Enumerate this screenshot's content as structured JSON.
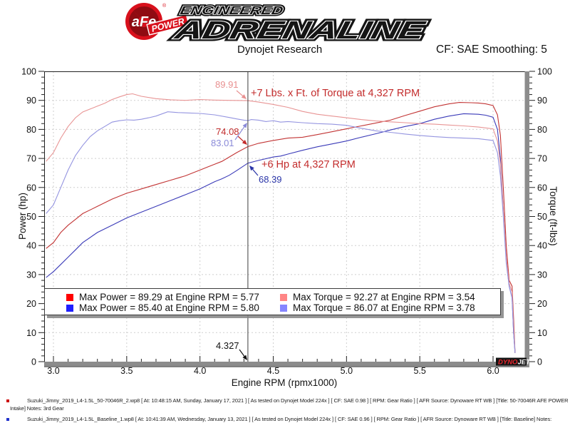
{
  "brand": {
    "afe": "aFe",
    "power": "POWER",
    "registered": "®",
    "engineered": "ENGINEERED",
    "adrenaline": "ADRENALINE"
  },
  "header": {
    "title": "Dynojet Research",
    "smoothing": "CF: SAE Smoothing: 5"
  },
  "chart_data": {
    "type": "line",
    "xlabel": "Engine RPM (rpmx1000)",
    "ylabel_left": "Power (hp)",
    "ylabel_right": "Torque (ft-lbs)",
    "xlim": [
      2.94,
      6.22
    ],
    "ylim": [
      0,
      100
    ],
    "x_major_tick": 0.5,
    "x_minor_tick": 0.1,
    "y_major_tick": 10,
    "y_minor_tick": 2,
    "grid": "dashed gray at major ticks",
    "legend_position": "bottom-inside",
    "cursor_x": 4.327,
    "cursor_readouts": {
      "rpm": 4.327,
      "torque_afe": 89.91,
      "torque_base": 83.01,
      "power_afe": 74.08,
      "power_base": 68.39
    },
    "annotations": {
      "torque_afe_value": "89.91",
      "torque_gain_label": "+7 Lbs. x Ft. of Torque at 4,327 RPM",
      "power_afe_value": "74.08",
      "torque_base_value": "83.01",
      "power_gain_label": "+6 Hp at 4,327 RPM",
      "power_base_value": "68.39",
      "cursor_label": "4.327"
    },
    "series": [
      {
        "name": "power_afe_intake",
        "unit": "hp",
        "color": "#c23434",
        "max": {
          "value": 89.29,
          "rpm": 5.77
        },
        "points": [
          [
            2.95,
            39
          ],
          [
            3.0,
            41
          ],
          [
            3.05,
            44.5
          ],
          [
            3.1,
            47
          ],
          [
            3.15,
            49
          ],
          [
            3.2,
            51
          ],
          [
            3.3,
            53.5
          ],
          [
            3.4,
            56
          ],
          [
            3.5,
            58
          ],
          [
            3.6,
            59.5
          ],
          [
            3.7,
            61
          ],
          [
            3.8,
            62.5
          ],
          [
            3.9,
            64
          ],
          [
            4.0,
            66
          ],
          [
            4.05,
            67
          ],
          [
            4.1,
            68
          ],
          [
            4.15,
            69
          ],
          [
            4.2,
            70.5
          ],
          [
            4.25,
            72
          ],
          [
            4.327,
            74.08
          ],
          [
            4.4,
            75.2
          ],
          [
            4.5,
            76.2
          ],
          [
            4.6,
            77
          ],
          [
            4.7,
            77.3
          ],
          [
            4.8,
            78.2
          ],
          [
            4.9,
            79.2
          ],
          [
            5.0,
            80.2
          ],
          [
            5.1,
            81.2
          ],
          [
            5.2,
            82.2
          ],
          [
            5.3,
            83.2
          ],
          [
            5.4,
            84.8
          ],
          [
            5.5,
            86.3
          ],
          [
            5.6,
            87.8
          ],
          [
            5.7,
            88.8
          ],
          [
            5.77,
            89.29
          ],
          [
            5.85,
            89.2
          ],
          [
            5.9,
            89.1
          ],
          [
            5.95,
            88.8
          ],
          [
            6.0,
            88.2
          ],
          [
            6.03,
            85
          ],
          [
            6.05,
            78
          ],
          [
            6.07,
            60
          ],
          [
            6.09,
            40
          ],
          [
            6.11,
            28
          ],
          [
            6.13,
            26
          ],
          [
            6.14,
            15
          ],
          [
            6.15,
            3
          ]
        ]
      },
      {
        "name": "power_baseline",
        "unit": "hp",
        "color": "#3a3ab8",
        "max": {
          "value": 85.4,
          "rpm": 5.8
        },
        "points": [
          [
            2.95,
            29
          ],
          [
            3.0,
            31
          ],
          [
            3.05,
            33.5
          ],
          [
            3.1,
            36
          ],
          [
            3.15,
            38.5
          ],
          [
            3.2,
            41
          ],
          [
            3.3,
            44.5
          ],
          [
            3.4,
            47
          ],
          [
            3.5,
            49.5
          ],
          [
            3.6,
            51.5
          ],
          [
            3.7,
            53.5
          ],
          [
            3.8,
            55.5
          ],
          [
            3.9,
            57.5
          ],
          [
            4.0,
            59.5
          ],
          [
            4.1,
            62
          ],
          [
            4.15,
            63
          ],
          [
            4.2,
            64.2
          ],
          [
            4.25,
            65.8
          ],
          [
            4.327,
            68.39
          ],
          [
            4.4,
            69.3
          ],
          [
            4.5,
            70.5
          ],
          [
            4.55,
            70.8
          ],
          [
            4.6,
            71.5
          ],
          [
            4.7,
            72.8
          ],
          [
            4.8,
            74
          ],
          [
            4.9,
            75
          ],
          [
            5.0,
            76
          ],
          [
            5.1,
            77.3
          ],
          [
            5.2,
            78.5
          ],
          [
            5.3,
            79.8
          ],
          [
            5.4,
            81
          ],
          [
            5.5,
            82
          ],
          [
            5.6,
            83.5
          ],
          [
            5.7,
            84.6
          ],
          [
            5.8,
            85.4
          ],
          [
            5.9,
            85.2
          ],
          [
            5.95,
            84.9
          ],
          [
            6.0,
            84.2
          ],
          [
            6.03,
            80
          ],
          [
            6.05,
            70
          ],
          [
            6.07,
            52
          ],
          [
            6.09,
            35
          ],
          [
            6.11,
            26
          ],
          [
            6.13,
            22
          ],
          [
            6.14,
            10
          ],
          [
            6.15,
            3
          ]
        ]
      },
      {
        "name": "torque_afe_intake",
        "unit": "ft-lbs",
        "color": "#e89494",
        "max": {
          "value": 92.27,
          "rpm": 3.54
        },
        "points": [
          [
            2.95,
            69
          ],
          [
            3.0,
            72
          ],
          [
            3.05,
            77
          ],
          [
            3.1,
            81
          ],
          [
            3.15,
            84
          ],
          [
            3.2,
            86
          ],
          [
            3.25,
            87
          ],
          [
            3.3,
            88
          ],
          [
            3.35,
            89
          ],
          [
            3.4,
            90.3
          ],
          [
            3.45,
            91.2
          ],
          [
            3.5,
            92
          ],
          [
            3.54,
            92.27
          ],
          [
            3.6,
            91.4
          ],
          [
            3.7,
            90.6
          ],
          [
            3.8,
            90.2
          ],
          [
            3.9,
            90
          ],
          [
            4.0,
            90.3
          ],
          [
            4.1,
            90.1
          ],
          [
            4.2,
            90
          ],
          [
            4.327,
            89.91
          ],
          [
            4.4,
            89.4
          ],
          [
            4.5,
            88.6
          ],
          [
            4.6,
            87.6
          ],
          [
            4.7,
            86.2
          ],
          [
            4.8,
            85.2
          ],
          [
            4.9,
            84.6
          ],
          [
            5.0,
            84
          ],
          [
            5.1,
            83.4
          ],
          [
            5.2,
            82.9
          ],
          [
            5.3,
            82.6
          ],
          [
            5.4,
            82.3
          ],
          [
            5.5,
            82
          ],
          [
            5.6,
            81.8
          ],
          [
            5.7,
            81.5
          ],
          [
            5.8,
            81.2
          ],
          [
            5.9,
            80.8
          ],
          [
            6.0,
            80.2
          ],
          [
            6.03,
            76
          ],
          [
            6.05,
            68
          ],
          [
            6.07,
            52
          ],
          [
            6.09,
            36
          ],
          [
            6.11,
            27
          ],
          [
            6.13,
            24
          ],
          [
            6.14,
            12
          ],
          [
            6.15,
            3
          ]
        ]
      },
      {
        "name": "torque_baseline",
        "unit": "ft-lbs",
        "color": "#9494e0",
        "max": {
          "value": 86.07,
          "rpm": 3.78
        },
        "points": [
          [
            2.95,
            51
          ],
          [
            3.0,
            54
          ],
          [
            3.05,
            60
          ],
          [
            3.1,
            66
          ],
          [
            3.15,
            71
          ],
          [
            3.2,
            74.5
          ],
          [
            3.25,
            77.5
          ],
          [
            3.3,
            79.5
          ],
          [
            3.35,
            81
          ],
          [
            3.4,
            82.5
          ],
          [
            3.45,
            83
          ],
          [
            3.5,
            83.3
          ],
          [
            3.55,
            83.2
          ],
          [
            3.6,
            83.5
          ],
          [
            3.65,
            84
          ],
          [
            3.7,
            84.6
          ],
          [
            3.78,
            86.07
          ],
          [
            3.85,
            85.8
          ],
          [
            3.9,
            85.7
          ],
          [
            4.0,
            85.5
          ],
          [
            4.1,
            85
          ],
          [
            4.2,
            84.1
          ],
          [
            4.25,
            83.6
          ],
          [
            4.3,
            83.2
          ],
          [
            4.327,
            83.01
          ],
          [
            4.35,
            83.4
          ],
          [
            4.4,
            83.2
          ],
          [
            4.45,
            82.7
          ],
          [
            4.5,
            83
          ],
          [
            4.55,
            82.5
          ],
          [
            4.6,
            82.7
          ],
          [
            4.7,
            82.3
          ],
          [
            4.8,
            82
          ],
          [
            4.9,
            81.8
          ],
          [
            5.0,
            81.4
          ],
          [
            5.1,
            80.4
          ],
          [
            5.2,
            79.5
          ],
          [
            5.3,
            79
          ],
          [
            5.4,
            78.4
          ],
          [
            5.5,
            77.9
          ],
          [
            5.6,
            77.5
          ],
          [
            5.7,
            77.2
          ],
          [
            5.8,
            77
          ],
          [
            5.9,
            76.8
          ],
          [
            6.0,
            76.2
          ],
          [
            6.03,
            72
          ],
          [
            6.05,
            64
          ],
          [
            6.07,
            50
          ],
          [
            6.09,
            34
          ],
          [
            6.11,
            26
          ],
          [
            6.13,
            22
          ],
          [
            6.14,
            10
          ],
          [
            6.15,
            3
          ]
        ]
      }
    ]
  },
  "legend": {
    "columns": [
      [
        {
          "color": "#ff0000",
          "label": "Max Power = 89.29 at Engine RPM = 5.77"
        },
        {
          "color": "#1f1fff",
          "label": "Max Power = 85.40 at Engine RPM = 5.80"
        }
      ],
      [
        {
          "color": "#ff8585",
          "label": "Max Torque = 92.27 at Engine RPM = 3.54"
        },
        {
          "color": "#8585ff",
          "label": "Max Torque = 86.07 at Engine RPM = 3.78"
        }
      ]
    ]
  },
  "watermark": {
    "dyno": "DYNO",
    "jet": "JET"
  },
  "footnotes": [
    {
      "color": "#cc0000",
      "text": "Suzuki_Jimny_2019_L4-1.5L_50-70046R_2.wp8 [ At: 10:48:15 AM, Sunday, January 17, 2021 ] [ As tested on Dynojet Model 224x ] [ CF: SAE 0.98 ] [ RPM: Gear Ratio ] [ AFR Source: Dynoware RT WB ] [Title: 50-70046R AFE POWER Intake]  Notes: 3rd Gear"
    },
    {
      "color": "#2233cc",
      "text": "Suzuki_Jimny_2019_L4-1.5L_Baseline_1.wp8 [ At: 10:41:39 AM, Wednesday, January 13, 2021 ] [ As tested on Dynojet Model 224x ] [ CF: SAE 0.96 ] [ RPM: Gear Ratio ] [ AFR Source: Dynoware RT WB ] [Title: Baseline]  Notes:"
    }
  ]
}
